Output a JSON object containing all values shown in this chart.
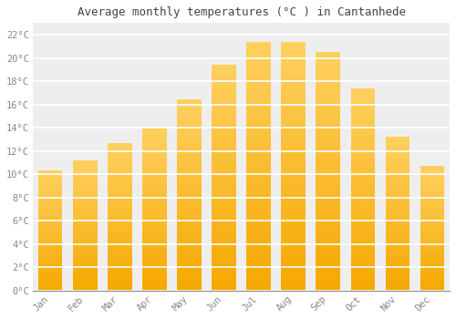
{
  "title": "Average monthly temperatures (°C ) in Cantanhede",
  "months": [
    "Jan",
    "Feb",
    "Mar",
    "Apr",
    "May",
    "Jun",
    "Jul",
    "Aug",
    "Sep",
    "Oct",
    "Nov",
    "Dec"
  ],
  "temperatures": [
    10.3,
    11.2,
    12.7,
    14.0,
    16.4,
    19.4,
    21.4,
    21.4,
    20.5,
    17.4,
    13.2,
    10.7
  ],
  "bar_color_bottom": "#F5A800",
  "bar_color_top": "#FFD060",
  "background_color": "#ffffff",
  "plot_bg_color": "#eeeeee",
  "grid_color": "#ffffff",
  "tick_color": "#888888",
  "title_color": "#444444",
  "ytick_labels": [
    "0°C",
    "2°C",
    "4°C",
    "6°C",
    "8°C",
    "10°C",
    "12°C",
    "14°C",
    "16°C",
    "18°C",
    "20°C",
    "22°C"
  ],
  "ytick_values": [
    0,
    2,
    4,
    6,
    8,
    10,
    12,
    14,
    16,
    18,
    20,
    22
  ],
  "ylim": [
    0,
    23
  ],
  "bar_width": 0.7,
  "title_fontsize": 9,
  "tick_fontsize": 7.5
}
